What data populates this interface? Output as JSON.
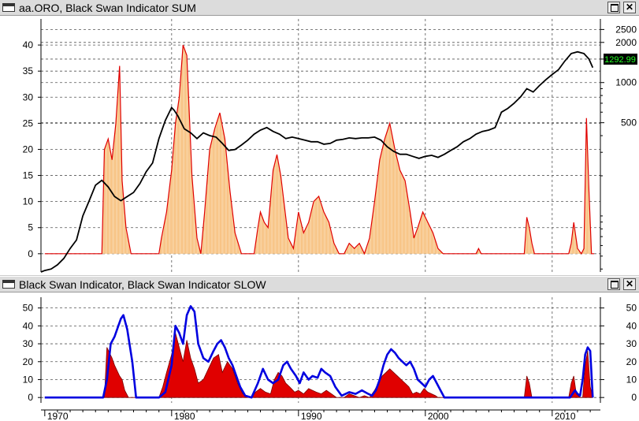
{
  "panels": {
    "top": {
      "title": "aa.ORO, Black Swan Indicator SUM"
    },
    "bottom": {
      "title": "Black Swan Indicator, Black Swan Indicator SLOW"
    }
  },
  "window_buttons": {
    "maximize": "☐",
    "close": "✕"
  },
  "colors": {
    "price": "#000000",
    "sum_fill": "#f6b96e",
    "sum_line": "#e00000",
    "slow_line": "#0000e0",
    "fast_fill": "#e00000",
    "last_price_bg": "#000000",
    "last_price_text": "#22ff22"
  },
  "chart_data": [
    {
      "type": "area",
      "panel": "top",
      "x_axis": {
        "type": "year",
        "range": [
          1969.7,
          2013.8
        ]
      },
      "y_left": {
        "ticks": [
          0,
          5,
          10,
          15,
          20,
          25,
          30,
          35,
          40
        ],
        "range": [
          -3.5,
          45
        ]
      },
      "y_right": {
        "scale": "log",
        "ticks": [
          500,
          1000,
          1500,
          2000,
          2500
        ],
        "range": [
          38,
          3000
        ],
        "last_value_label": "1292.99"
      },
      "grid": true,
      "series": [
        {
          "axis": "right",
          "style": "line",
          "x": [
            1969.7,
            1970,
            1970.5,
            1971,
            1971.5,
            1972,
            1972.5,
            1973,
            1973.5,
            1974,
            1974.5,
            1975,
            1975.5,
            1976,
            1976.5,
            1977,
            1977.5,
            1978,
            1978.5,
            1979,
            1979.5,
            1980,
            1980.2,
            1980.5,
            1981,
            1981.5,
            1982,
            1982.5,
            1983,
            1983.5,
            1984,
            1984.5,
            1985,
            1985.5,
            1986,
            1986.5,
            1987,
            1987.5,
            1988,
            1988.5,
            1989,
            1989.5,
            1990,
            1990.5,
            1991,
            1991.5,
            1992,
            1992.5,
            1993,
            1993.5,
            1994,
            1994.5,
            1995,
            1995.5,
            1996,
            1996.5,
            1997,
            1997.5,
            1998,
            1998.5,
            1999,
            1999.5,
            2000,
            2000.5,
            2001,
            2001.5,
            2002,
            2002.5,
            2003,
            2003.5,
            2004,
            2004.5,
            2005,
            2005.5,
            2006,
            2006.5,
            2007,
            2007.5,
            2008,
            2008.5,
            2009,
            2009.5,
            2010,
            2010.5,
            2011,
            2011.5,
            2012,
            2012.5,
            2012.9,
            2013.2
          ],
          "values": [
            38,
            39,
            40,
            43,
            48,
            57,
            66,
            100,
            130,
            170,
            185,
            165,
            140,
            130,
            140,
            150,
            175,
            215,
            250,
            380,
            520,
            650,
            620,
            560,
            450,
            420,
            380,
            420,
            400,
            390,
            350,
            310,
            315,
            340,
            370,
            410,
            440,
            460,
            430,
            410,
            380,
            390,
            380,
            370,
            360,
            360,
            345,
            350,
            370,
            375,
            385,
            380,
            385,
            385,
            390,
            370,
            330,
            305,
            290,
            290,
            280,
            270,
            280,
            285,
            275,
            290,
            310,
            330,
            360,
            380,
            410,
            430,
            440,
            460,
            600,
            640,
            700,
            780,
            900,
            850,
            950,
            1050,
            1150,
            1250,
            1450,
            1650,
            1700,
            1650,
            1500,
            1293
          ]
        },
        {
          "axis": "left",
          "style": "area",
          "x": [
            1970,
            1974.5,
            1974.7,
            1975.0,
            1975.3,
            1975.6,
            1975.9,
            1976.1,
            1976.4,
            1976.8,
            1977.0,
            1979.0,
            1979.2,
            1979.6,
            1980.0,
            1980.3,
            1980.6,
            1980.9,
            1981.2,
            1981.6,
            1982.0,
            1982.3,
            1982.6,
            1983.0,
            1983.4,
            1983.8,
            1984.2,
            1984.6,
            1985.0,
            1985.5,
            1986.0,
            1986.5,
            1986.8,
            1987.0,
            1987.3,
            1987.6,
            1988.0,
            1988.3,
            1988.6,
            1988.9,
            1989.2,
            1989.6,
            1990.0,
            1990.4,
            1990.8,
            1991.2,
            1991.6,
            1992.0,
            1992.4,
            1992.8,
            1993.2,
            1993.6,
            1994.0,
            1994.4,
            1994.8,
            1995.2,
            1995.6,
            1996.0,
            1996.4,
            1996.8,
            1997.2,
            1997.6,
            1998.0,
            1998.4,
            1998.8,
            1999.1,
            1999.4,
            1999.8,
            2000.2,
            2000.6,
            2001.0,
            2001.4,
            2004.0,
            2004.2,
            2004.4,
            2007.8,
            2008.0,
            2008.2,
            2008.4,
            2008.6,
            2011.3,
            2011.5,
            2011.7,
            2012.0,
            2012.3,
            2012.5,
            2012.7,
            2012.9,
            2013.1,
            2013.3
          ],
          "values": [
            0,
            0,
            20,
            22,
            18,
            25,
            36,
            14,
            5,
            0,
            0,
            0,
            3,
            8,
            16,
            25,
            30,
            40,
            38,
            15,
            3,
            0,
            8,
            20,
            24,
            27,
            22,
            12,
            4,
            0,
            0,
            0,
            5,
            8,
            6,
            5,
            16,
            19,
            15,
            9,
            3,
            1,
            8,
            4,
            6,
            10,
            11,
            8,
            6,
            2,
            0,
            0,
            2,
            1,
            2,
            0,
            3,
            10,
            18,
            22,
            25,
            20,
            16,
            14,
            8,
            3,
            5,
            8,
            6,
            4,
            1,
            0,
            0,
            1,
            0,
            0,
            7,
            5,
            2,
            0,
            0,
            2,
            6,
            1,
            0,
            1,
            26,
            12,
            0,
            0
          ]
        }
      ]
    },
    {
      "type": "line",
      "panel": "bottom",
      "x_axis": {
        "type": "year",
        "range": [
          1969.7,
          2013.8
        ],
        "tick_labels": [
          "1970",
          "1980",
          "1990",
          "2000",
          "2010"
        ]
      },
      "y_left": {
        "ticks": [
          0,
          10,
          20,
          30,
          40,
          50
        ],
        "range": [
          -3,
          56
        ]
      },
      "y_right": {
        "ticks": [
          0,
          10,
          20,
          30,
          40,
          50
        ],
        "range": [
          -3,
          56
        ]
      },
      "grid": true,
      "series": [
        {
          "style": "area",
          "x": [
            1970,
            1974.7,
            1974.9,
            1975.1,
            1975.3,
            1975.5,
            1975.7,
            1975.9,
            1976.1,
            1976.3,
            1976.6,
            1979.0,
            1979.3,
            1979.6,
            1980.0,
            1980.3,
            1980.6,
            1980.9,
            1981.2,
            1981.5,
            1981.8,
            1982.1,
            1982.5,
            1982.9,
            1983.3,
            1983.7,
            1984.0,
            1984.4,
            1984.8,
            1985.2,
            1985.6,
            1986.3,
            1986.6,
            1987.0,
            1987.4,
            1987.8,
            1988.1,
            1988.4,
            1988.7,
            1989.0,
            1989.3,
            1989.7,
            1990.0,
            1990.4,
            1990.8,
            1991.1,
            1991.4,
            1991.8,
            1992.2,
            1992.6,
            1993.0,
            1993.6,
            1994.0,
            1994.4,
            1994.8,
            1995.2,
            1995.6,
            1996.0,
            1996.3,
            1996.6,
            1996.9,
            1997.2,
            1997.5,
            1997.8,
            1998.1,
            1998.4,
            1998.7,
            1999.0,
            1999.3,
            1999.6,
            1999.9,
            2000.2,
            2000.5,
            2000.8,
            2001.0,
            2007.8,
            2008.0,
            2008.2,
            2008.4,
            2011.3,
            2011.5,
            2011.7,
            2011.9,
            2012.2,
            2012.4,
            2012.6,
            2012.8,
            2013.0,
            2013.2
          ],
          "values": [
            0,
            0,
            28,
            25,
            22,
            18,
            15,
            12,
            10,
            4,
            0,
            0,
            6,
            14,
            24,
            36,
            28,
            20,
            32,
            22,
            16,
            8,
            10,
            16,
            22,
            24,
            14,
            20,
            16,
            8,
            2,
            0,
            3,
            5,
            3,
            2,
            10,
            14,
            12,
            8,
            6,
            3,
            4,
            2,
            5,
            4,
            3,
            2,
            4,
            2,
            0,
            0,
            2,
            1,
            0,
            1,
            0,
            4,
            8,
            12,
            14,
            16,
            14,
            12,
            10,
            8,
            6,
            2,
            3,
            2,
            5,
            3,
            2,
            1,
            0,
            0,
            12,
            8,
            0,
            0,
            8,
            12,
            2,
            0,
            0,
            18,
            26,
            6,
            0
          ]
        },
        {
          "style": "line",
          "x": [
            1970,
            1974.6,
            1974.9,
            1975.2,
            1975.5,
            1975.8,
            1976.0,
            1976.2,
            1976.5,
            1976.9,
            1977.2,
            1979.0,
            1979.5,
            1980.0,
            1980.3,
            1980.6,
            1980.9,
            1981.2,
            1981.5,
            1981.8,
            1982.1,
            1982.5,
            1982.9,
            1983.3,
            1983.6,
            1983.9,
            1984.2,
            1984.5,
            1984.8,
            1985.1,
            1985.4,
            1985.8,
            1986.3,
            1986.8,
            1987.2,
            1987.6,
            1988.0,
            1988.4,
            1988.8,
            1989.1,
            1989.4,
            1989.8,
            1990.1,
            1990.4,
            1990.8,
            1991.1,
            1991.5,
            1991.8,
            1992.1,
            1992.5,
            1992.9,
            1993.4,
            1994.0,
            1994.5,
            1995.0,
            1995.5,
            1995.8,
            1996.1,
            1996.4,
            1996.7,
            1997.0,
            1997.3,
            1997.6,
            1997.9,
            1998.2,
            1998.5,
            1998.8,
            1999.1,
            1999.4,
            1999.7,
            2000.0,
            2000.3,
            2000.6,
            2000.9,
            2001.2,
            2001.5,
            2007.8,
            2008.1,
            2008.4,
            2008.7,
            2011.4,
            2011.6,
            2011.8,
            2012.0,
            2012.2,
            2012.4,
            2012.6,
            2012.8,
            2013.0,
            2013.2
          ],
          "values": [
            0,
            0,
            10,
            30,
            34,
            40,
            44,
            46,
            38,
            20,
            0,
            0,
            3,
            18,
            40,
            36,
            30,
            46,
            51,
            48,
            30,
            22,
            20,
            26,
            30,
            32,
            28,
            22,
            18,
            12,
            6,
            1,
            0,
            8,
            16,
            10,
            8,
            10,
            18,
            20,
            16,
            12,
            8,
            14,
            10,
            12,
            11,
            16,
            14,
            12,
            6,
            1,
            3,
            2,
            4,
            2,
            1,
            4,
            10,
            18,
            24,
            27,
            25,
            22,
            20,
            18,
            20,
            16,
            10,
            8,
            6,
            10,
            12,
            8,
            4,
            0,
            0,
            0,
            0,
            0,
            0,
            2,
            4,
            2,
            1,
            10,
            24,
            28,
            26,
            0
          ]
        }
      ]
    }
  ]
}
